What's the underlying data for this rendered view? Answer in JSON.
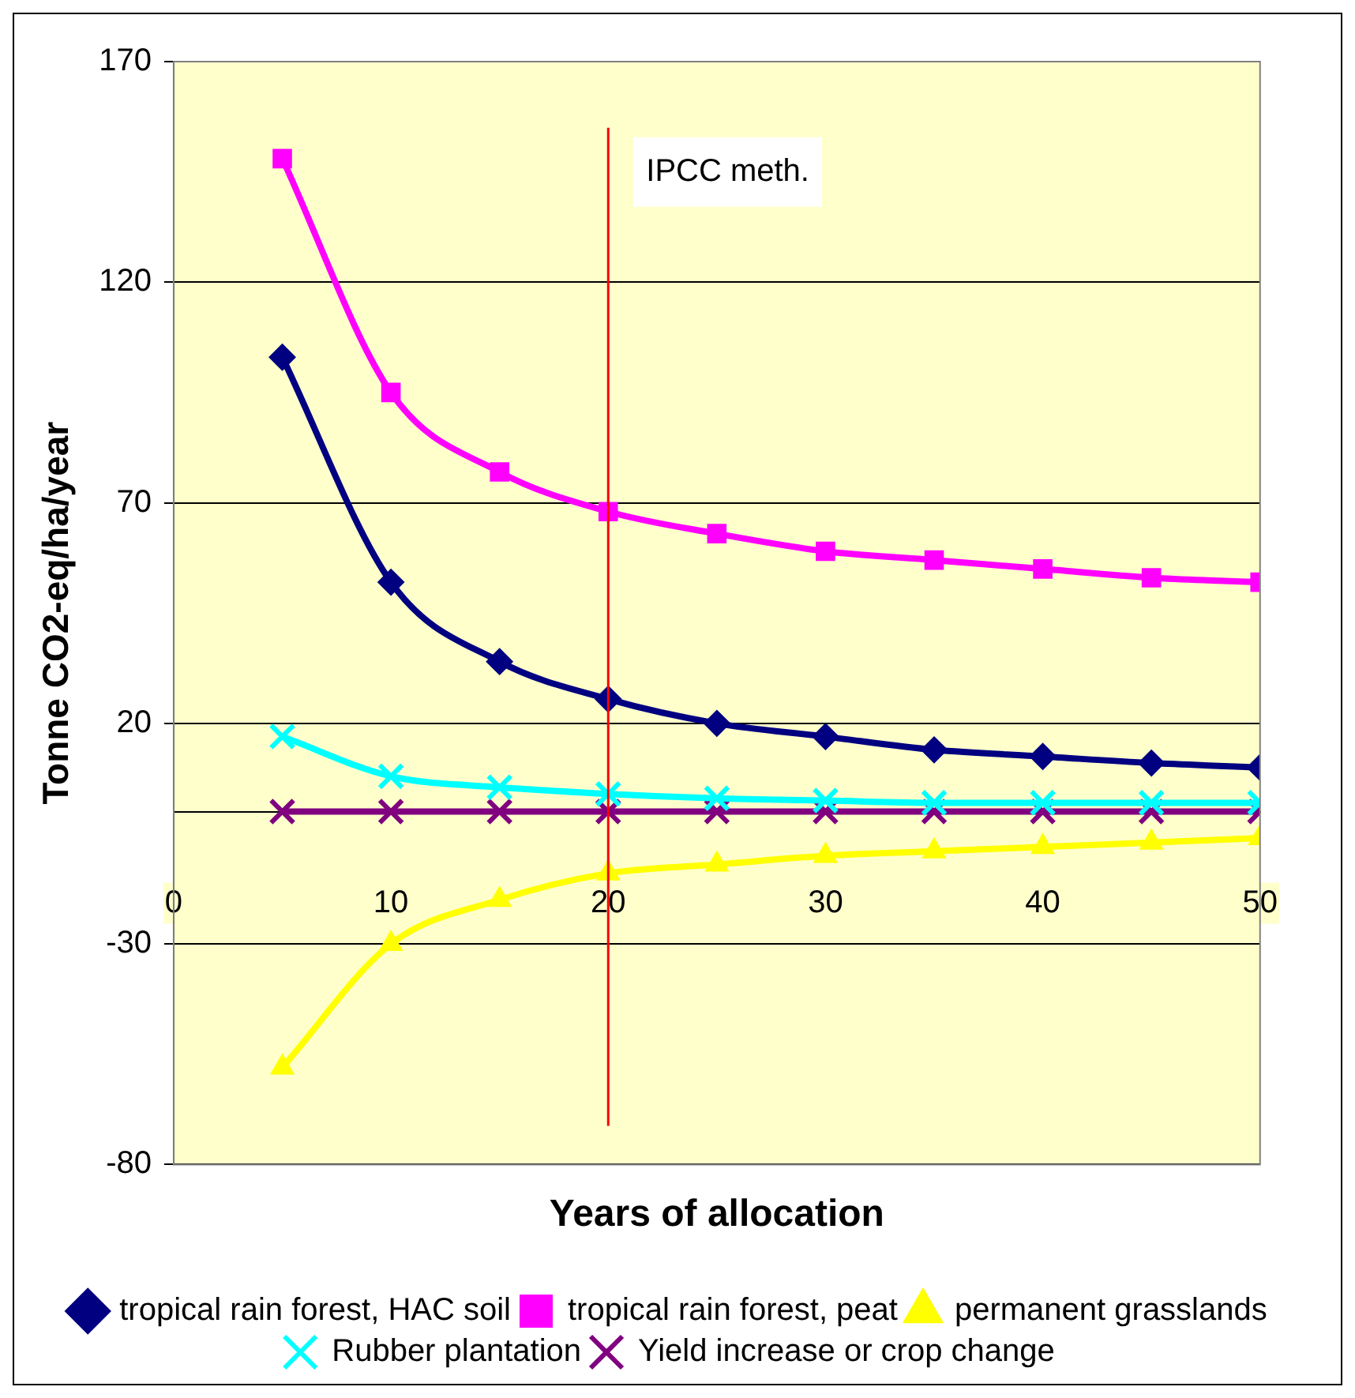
{
  "chart_data": {
    "type": "line",
    "xlabel": "Years of allocation",
    "ylabel": "Tonne CO2-eq/ha/year",
    "x": [
      5,
      10,
      15,
      20,
      25,
      30,
      35,
      40,
      45,
      50
    ],
    "series": [
      {
        "name": "tropical rain forest, HAC soil",
        "color": "#000080",
        "marker": "diamond",
        "values": [
          103,
          52,
          34,
          25.5,
          20,
          17,
          14,
          12.5,
          11,
          10
        ]
      },
      {
        "name": "tropical rain forest, peat",
        "color": "#ff00ff",
        "marker": "square",
        "values": [
          148,
          95,
          77,
          68,
          63,
          59,
          57,
          55,
          53,
          52
        ]
      },
      {
        "name": "permanent grasslands",
        "color": "#ffff00",
        "marker": "triangle",
        "values": [
          -58,
          -30,
          -20,
          -14,
          -12,
          -10,
          -9,
          -8,
          -7,
          -6
        ]
      },
      {
        "name": "Rubber plantation",
        "color": "#00ffff",
        "marker": "cross",
        "values": [
          17,
          8,
          5.5,
          4,
          3,
          2.5,
          2,
          2,
          2,
          2
        ]
      },
      {
        "name": "Yield increase or crop change",
        "color": "#800080",
        "marker": "cross",
        "values": [
          0,
          0,
          0,
          0,
          0,
          0,
          0,
          0,
          0,
          0
        ]
      }
    ],
    "xlim": [
      0,
      50
    ],
    "xticks": [
      0,
      10,
      20,
      30,
      40,
      50
    ],
    "ylim": [
      -80,
      170
    ],
    "yticks": [
      -80,
      -30,
      20,
      70,
      120,
      170
    ],
    "ref_lines": [
      {
        "axis": "x",
        "value": 20,
        "label": "IPCC meth.",
        "color": "#ff0000"
      }
    ],
    "grid": "y",
    "legend": "bottom"
  }
}
